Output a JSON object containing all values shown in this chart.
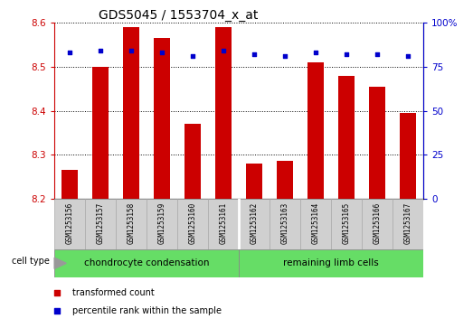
{
  "title": "GDS5045 / 1553704_x_at",
  "samples": [
    "GSM1253156",
    "GSM1253157",
    "GSM1253158",
    "GSM1253159",
    "GSM1253160",
    "GSM1253161",
    "GSM1253162",
    "GSM1253163",
    "GSM1253164",
    "GSM1253165",
    "GSM1253166",
    "GSM1253167"
  ],
  "transformed_counts": [
    8.265,
    8.5,
    8.59,
    8.565,
    8.37,
    8.59,
    8.28,
    8.285,
    8.51,
    8.48,
    8.455,
    8.395
  ],
  "percentile_ranks": [
    83,
    84,
    84,
    83,
    81,
    84,
    82,
    81,
    83,
    82,
    82,
    81
  ],
  "ylim_left": [
    8.2,
    8.6
  ],
  "ylim_right": [
    0,
    100
  ],
  "yticks_left": [
    8.2,
    8.3,
    8.4,
    8.5,
    8.6
  ],
  "yticks_right": [
    0,
    25,
    50,
    75,
    100
  ],
  "bar_color": "#cc0000",
  "dot_color": "#0000cc",
  "bar_bottom": 8.2,
  "groups": [
    {
      "label": "chondrocyte condensation",
      "start": 0,
      "end": 5,
      "color": "#66dd66"
    },
    {
      "label": "remaining limb cells",
      "start": 6,
      "end": 11,
      "color": "#66dd66"
    }
  ],
  "cell_type_label": "cell type",
  "legend_items": [
    {
      "color": "#cc0000",
      "label": "transformed count"
    },
    {
      "color": "#0000cc",
      "label": "percentile rank within the sample"
    }
  ],
  "grid_color": "black",
  "title_fontsize": 10,
  "tick_fontsize": 7.5,
  "sample_fontsize": 5.5,
  "group_fontsize": 7.5,
  "legend_fontsize": 7,
  "cell_type_fontsize": 7
}
